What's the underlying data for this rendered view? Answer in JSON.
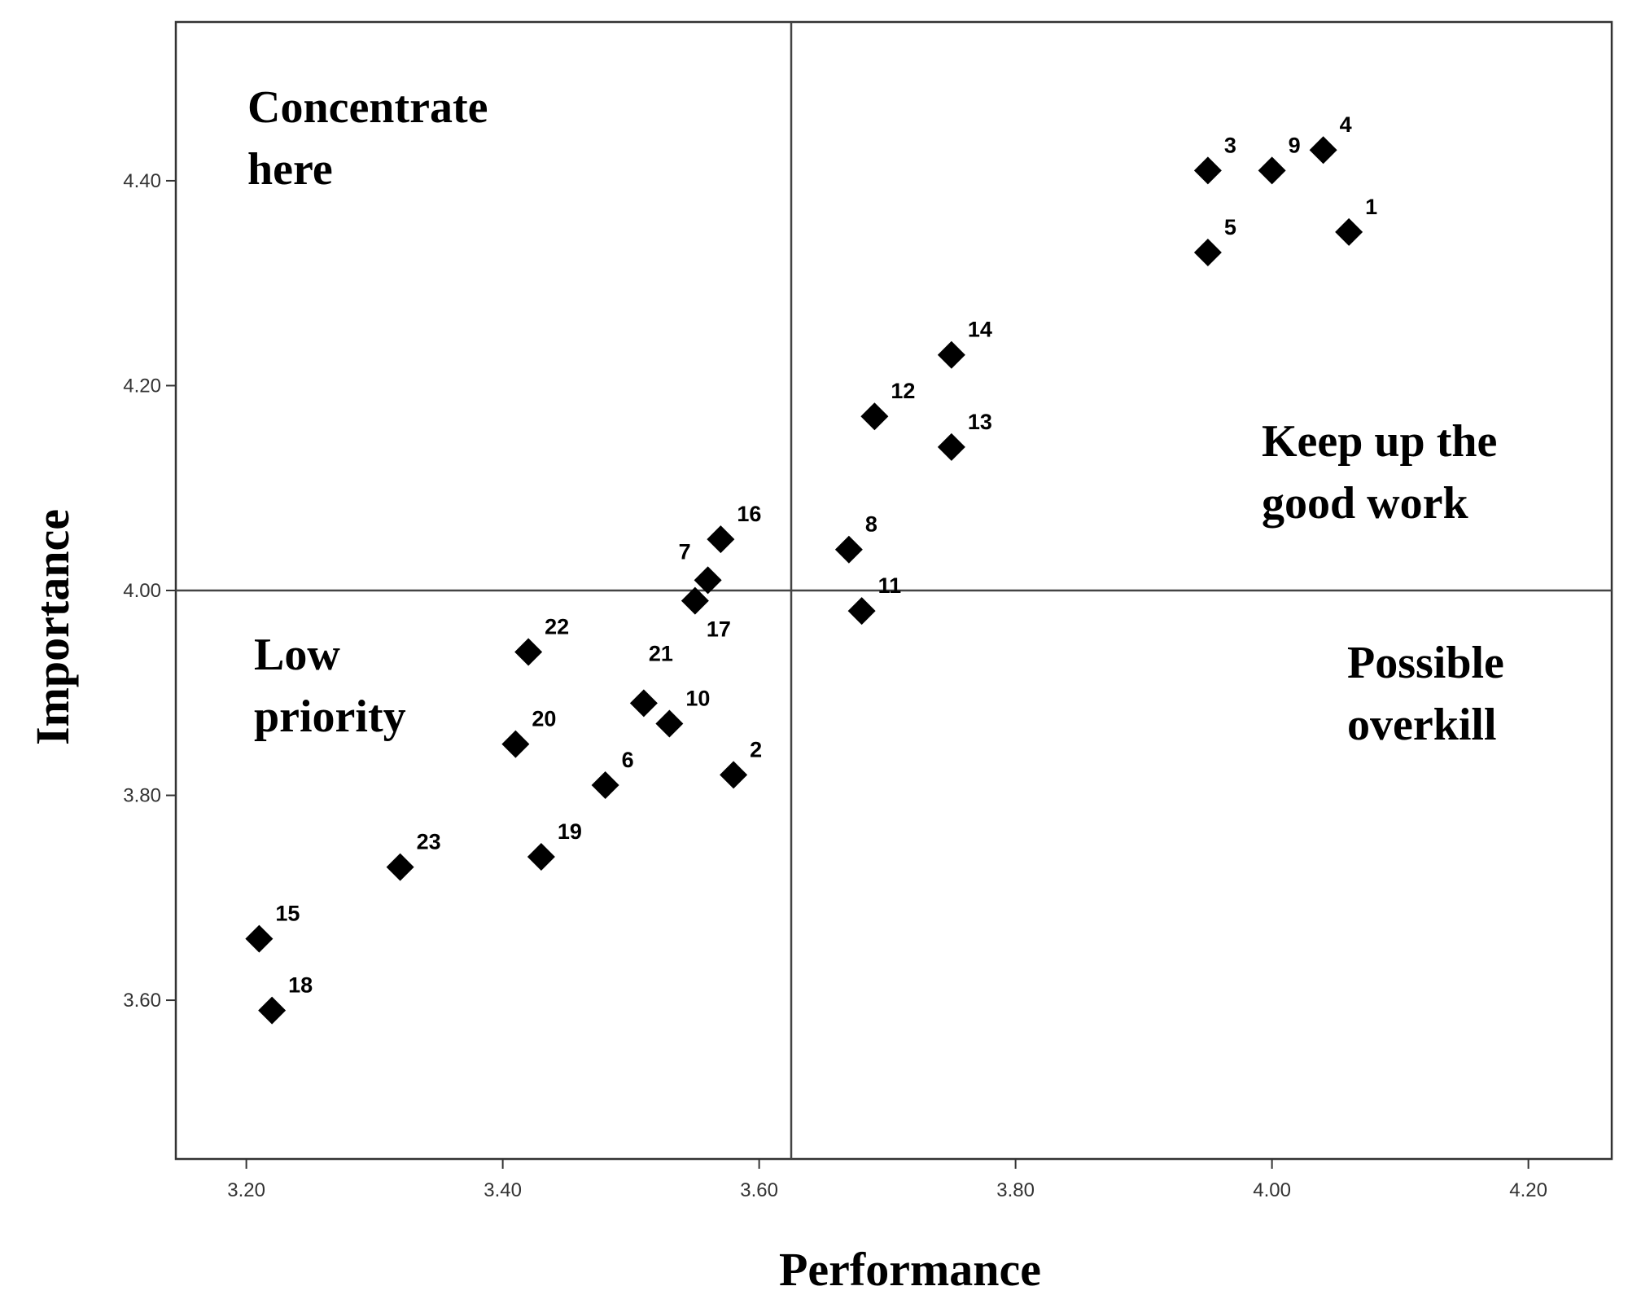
{
  "chart_data": {
    "type": "scatter",
    "title": "",
    "xlabel": "Performance",
    "ylabel": "Importance",
    "xlim": [
      3.145,
      4.265
    ],
    "ylim": [
      3.445,
      4.555
    ],
    "xticks": [
      "3.20",
      "3.40",
      "3.60",
      "3.80",
      "4.00",
      "4.20"
    ],
    "yticks": [
      "3.60",
      "3.80",
      "4.00",
      "4.20",
      "4.40"
    ],
    "grid": false,
    "reference_lines": {
      "x": 3.625,
      "y": 4.0
    },
    "quadrants": {
      "top_left": [
        "Concentrate",
        "here"
      ],
      "top_right": [
        "Keep up the",
        "good work"
      ],
      "bottom_left": [
        "Low",
        "priority"
      ],
      "bottom_right": [
        "Possible",
        "overkill"
      ]
    },
    "points": [
      {
        "label": "1",
        "x": 4.06,
        "y": 4.35
      },
      {
        "label": "2",
        "x": 3.58,
        "y": 3.82
      },
      {
        "label": "3",
        "x": 3.95,
        "y": 4.41
      },
      {
        "label": "4",
        "x": 4.04,
        "y": 4.43
      },
      {
        "label": "5",
        "x": 3.95,
        "y": 4.33
      },
      {
        "label": "6",
        "x": 3.48,
        "y": 3.81
      },
      {
        "label": "7",
        "x": 3.56,
        "y": 4.01
      },
      {
        "label": "8",
        "x": 3.67,
        "y": 4.04
      },
      {
        "label": "9",
        "x": 4.0,
        "y": 4.41
      },
      {
        "label": "10",
        "x": 3.53,
        "y": 3.87
      },
      {
        "label": "11",
        "x": 3.68,
        "y": 3.98
      },
      {
        "label": "12",
        "x": 3.69,
        "y": 4.17
      },
      {
        "label": "13",
        "x": 3.75,
        "y": 4.14
      },
      {
        "label": "14",
        "x": 3.75,
        "y": 4.23
      },
      {
        "label": "15",
        "x": 3.21,
        "y": 3.66
      },
      {
        "label": "16",
        "x": 3.57,
        "y": 4.05
      },
      {
        "label": "17",
        "x": 3.55,
        "y": 3.99
      },
      {
        "label": "18",
        "x": 3.22,
        "y": 3.59
      },
      {
        "label": "19",
        "x": 3.43,
        "y": 3.74
      },
      {
        "label": "20",
        "x": 3.41,
        "y": 3.85
      },
      {
        "label": "21",
        "x": 3.51,
        "y": 3.89
      },
      {
        "label": "22",
        "x": 3.42,
        "y": 3.94
      },
      {
        "label": "23",
        "x": 3.32,
        "y": 3.73
      }
    ]
  },
  "colors": {
    "marker": "#000000",
    "axis": "#333333",
    "background": "#ffffff"
  }
}
